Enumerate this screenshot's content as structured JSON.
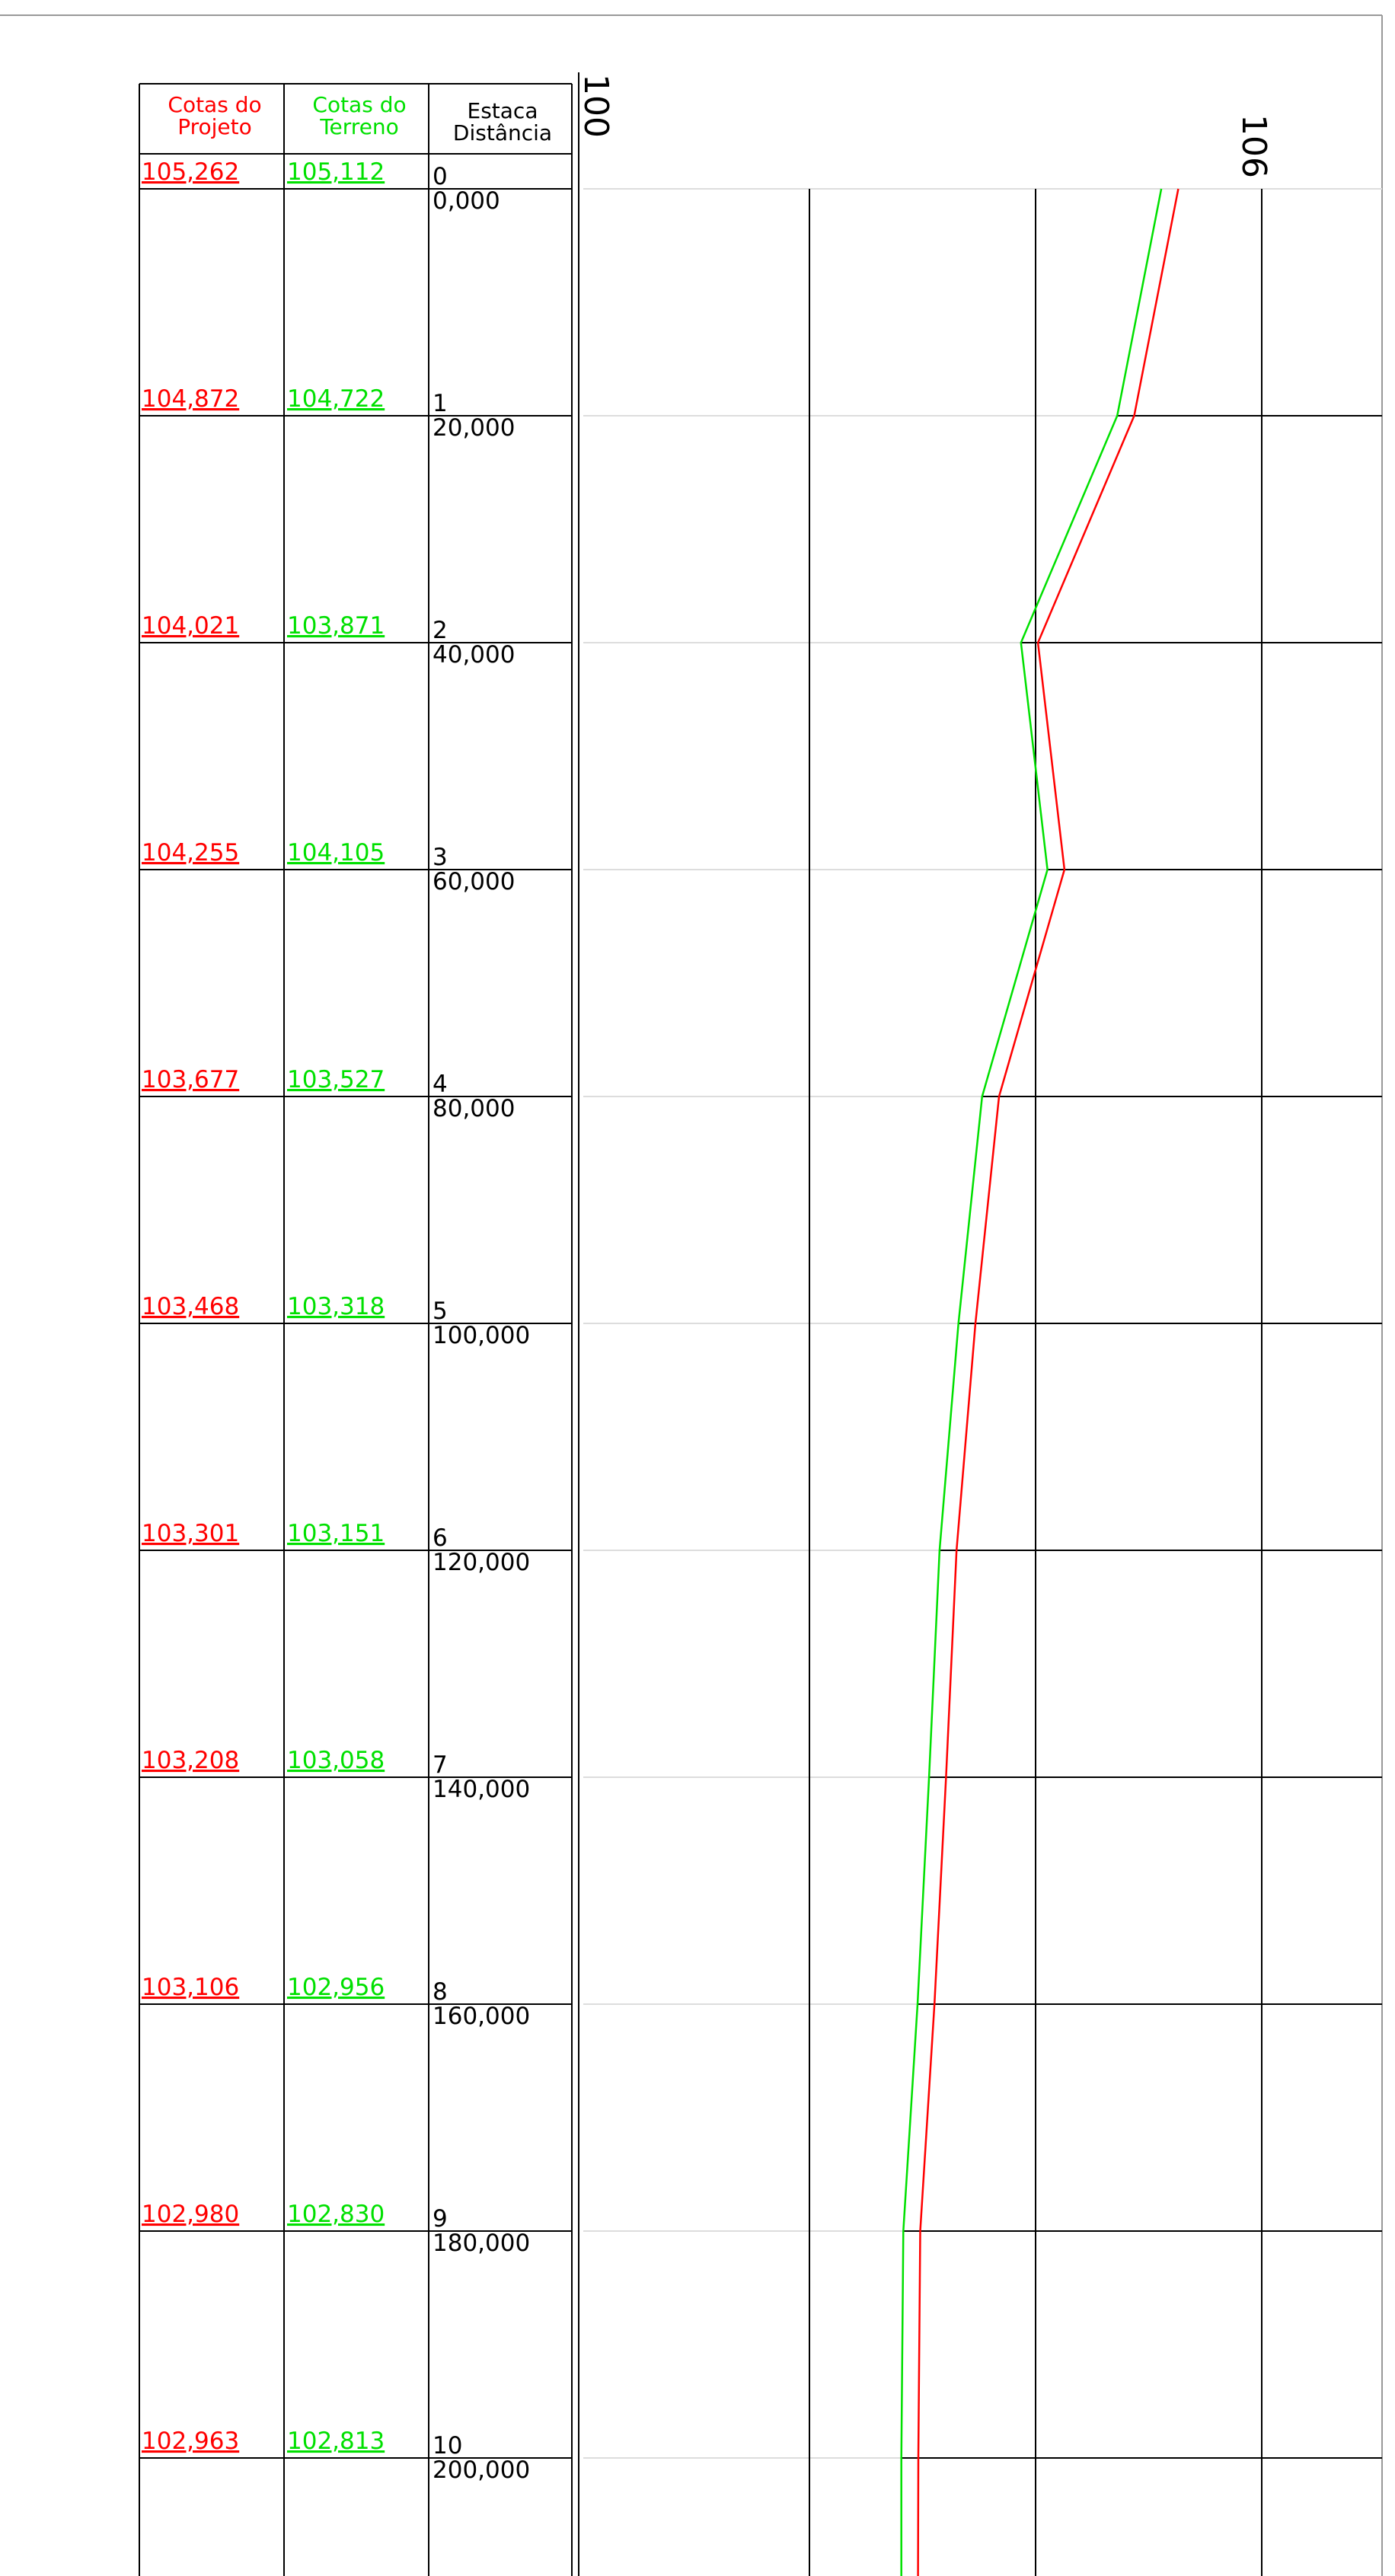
{
  "table": {
    "headers": {
      "projeto_line1": "Cotas do",
      "projeto_line2": "Projeto",
      "terreno_line1": "Cotas do",
      "terreno_line2": "Terreno",
      "estaca_line1": "Estaca",
      "estaca_line2": "Distância"
    },
    "rows": [
      {
        "projeto": "105,262",
        "terreno": "105,112",
        "estaca": "0",
        "distancia": "0,000"
      },
      {
        "projeto": "104,872",
        "terreno": "104,722",
        "estaca": "1",
        "distancia": "20,000"
      },
      {
        "projeto": "104,021",
        "terreno": "103,871",
        "estaca": "2",
        "distancia": "40,000"
      },
      {
        "projeto": "104,255",
        "terreno": "104,105",
        "estaca": "3",
        "distancia": "60,000"
      },
      {
        "projeto": "103,677",
        "terreno": "103,527",
        "estaca": "4",
        "distancia": "80,000"
      },
      {
        "projeto": "103,468",
        "terreno": "103,318",
        "estaca": "5",
        "distancia": "100,000"
      },
      {
        "projeto": "103,301",
        "terreno": "103,151",
        "estaca": "6",
        "distancia": "120,000"
      },
      {
        "projeto": "103,208",
        "terreno": "103,058",
        "estaca": "7",
        "distancia": "140,000"
      },
      {
        "projeto": "103,106",
        "terreno": "102,956",
        "estaca": "8",
        "distancia": "160,000"
      },
      {
        "projeto": "102,980",
        "terreno": "102,830",
        "estaca": "9",
        "distancia": "180,000"
      },
      {
        "projeto": "102,963",
        "terreno": "102,813",
        "estaca": "10",
        "distancia": "200,000"
      }
    ]
  },
  "axis": {
    "left_label": "100",
    "right_label": "106",
    "min": 100,
    "max": 106,
    "gridlines": [
      100,
      102,
      104,
      106
    ]
  },
  "profile": {
    "projeto_values": [
      105.262,
      104.872,
      104.021,
      104.255,
      103.677,
      103.468,
      103.301,
      103.208,
      103.106,
      102.98,
      102.963
    ],
    "terreno_values": [
      105.112,
      104.722,
      103.871,
      104.105,
      103.527,
      103.318,
      103.151,
      103.058,
      102.956,
      102.83,
      102.813
    ],
    "projeto_end": 102.96,
    "terreno_end": 102.813
  },
  "colors": {
    "projeto": "#ff0000",
    "terreno": "#00e000",
    "line": "#000000",
    "station_line": "#dddddd"
  }
}
